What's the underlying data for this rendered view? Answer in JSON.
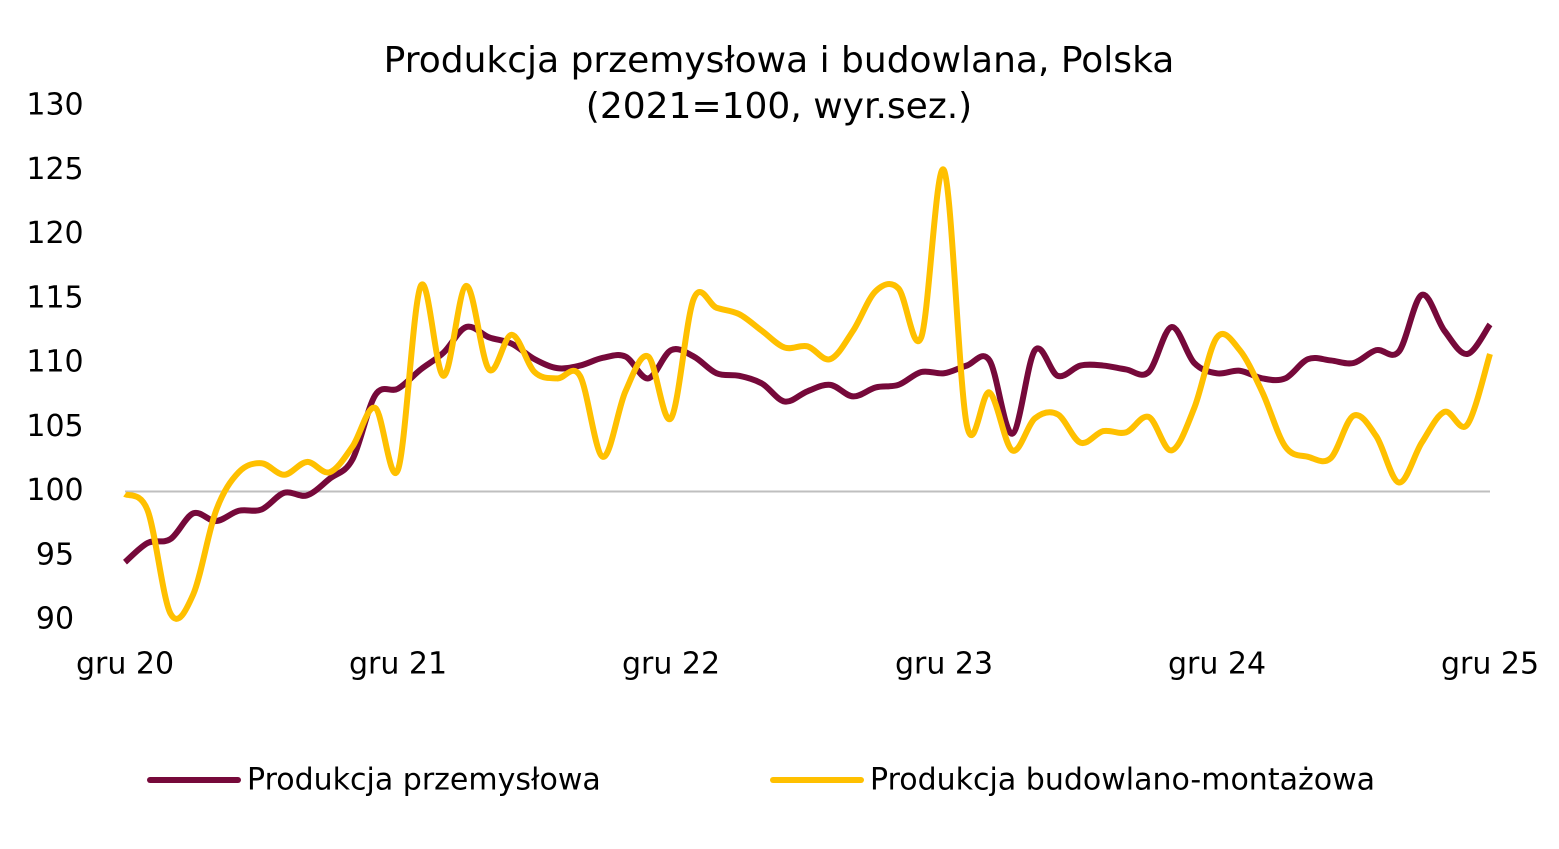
{
  "chart_data": {
    "type": "line",
    "title": "Produkcja przemysłowa i budowlana, Polska",
    "subtitle": "(2021=100, wyr.sez.)",
    "categories": [
      "gru 20",
      null,
      null,
      null,
      null,
      null,
      null,
      null,
      null,
      null,
      null,
      null,
      "gru 21",
      null,
      null,
      null,
      null,
      null,
      null,
      null,
      null,
      null,
      null,
      null,
      "gru 22",
      null,
      null,
      null,
      null,
      null,
      null,
      null,
      null,
      null,
      null,
      null,
      "gru 23",
      null,
      null,
      null,
      null,
      null,
      null,
      null,
      null,
      null,
      null,
      null,
      "gru 24",
      null,
      null,
      null,
      null,
      null,
      null,
      null,
      null,
      null,
      null,
      null,
      "gru 25"
    ],
    "series": [
      {
        "name": "Produkcja przemysłowa",
        "color": "#76093a",
        "values": [
          94.5,
          96,
          96.3,
          98.3,
          97.7,
          98.5,
          98.6,
          99.9,
          99.7,
          101,
          102.5,
          107.5,
          108,
          109.5,
          110.8,
          112.8,
          112,
          111.5,
          110.3,
          109.6,
          109.8,
          110.4,
          110.5,
          108.8,
          111,
          110.5,
          109.2,
          109,
          108.4,
          107,
          107.8,
          108.3,
          107.4,
          108.1,
          108.3,
          109.3,
          109.2,
          109.8,
          110.2,
          104.5,
          111,
          109,
          109.8,
          109.8,
          109.5,
          109.3,
          112.8,
          110,
          109.2,
          109.4,
          108.8,
          108.8,
          110.3,
          110.2,
          110,
          111,
          110.9,
          115.3,
          112.5,
          110.7,
          113
        ]
      },
      {
        "name": "Produkcja budowlano-montażowa",
        "color": "#ffc000",
        "values": [
          99.8,
          98.5,
          90.5,
          92,
          98.5,
          101.5,
          102.2,
          101.3,
          102.3,
          101.5,
          103.5,
          106.5,
          101.7,
          116,
          109,
          116,
          109.5,
          112.2,
          109.3,
          108.8,
          109,
          102.7,
          107.8,
          110.5,
          105.7,
          115,
          114.3,
          113.8,
          112.5,
          111.2,
          111.3,
          110.3,
          112.5,
          115.6,
          115.8,
          112,
          125,
          105.2,
          107.7,
          103.2,
          105.7,
          106,
          103.8,
          104.7,
          104.6,
          105.8,
          103.2,
          106.5,
          112,
          111,
          107.7,
          103.5,
          102.7,
          102.6,
          105.9,
          104.3,
          100.7,
          103.8,
          106.2,
          105.2,
          110.7
        ]
      }
    ],
    "ylim": [
      90,
      130
    ],
    "yticks": [
      90,
      95,
      100,
      105,
      110,
      115,
      120,
      125,
      130
    ],
    "reference_line": 100,
    "grid": false,
    "legend": "bottom"
  }
}
